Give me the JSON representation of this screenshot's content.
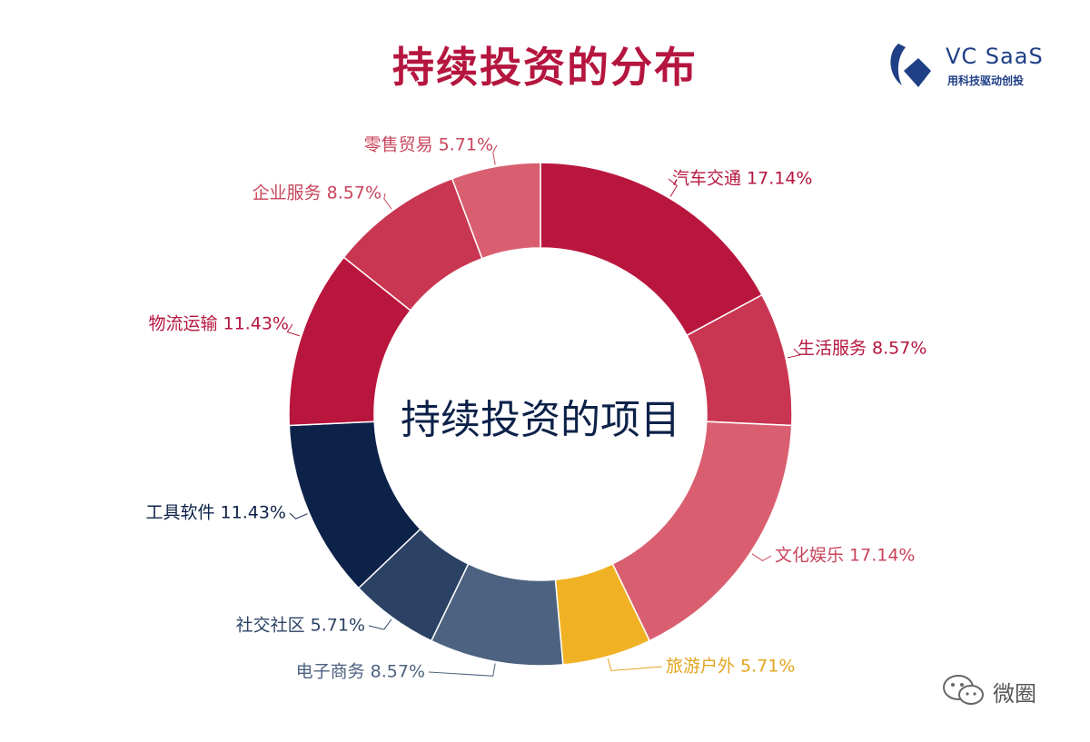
{
  "header": {
    "title": "持续投资的分布"
  },
  "logo": {
    "brand": "VC SaaS",
    "slogan": "用科技驱动创投",
    "icon": "vc-saas-logo-icon",
    "color": "#1f3f86"
  },
  "watermark": {
    "text": "微圈",
    "icon": "wechat-icon"
  },
  "chart_data": {
    "type": "pie",
    "donut": true,
    "center_label": "持续投资的项目",
    "slices": [
      {
        "label": "汽车交通",
        "value": 17.14,
        "display": "汽车交通 17.14%",
        "color": "#b9163e",
        "label_color": "#b5163f"
      },
      {
        "label": "生活服务",
        "value": 8.57,
        "display": "生活服务 8.57%",
        "color": "#c93651",
        "label_color": "#b5163f"
      },
      {
        "label": "文化娱乐",
        "value": 17.14,
        "display": "文化娱乐 17.14%",
        "color": "#d95f70",
        "label_color": "#c9455c"
      },
      {
        "label": "旅游户外",
        "value": 5.71,
        "display": "旅游户外 5.71%",
        "color": "#f0b224",
        "label_color": "#e3a51d"
      },
      {
        "label": "电子商务",
        "value": 8.57,
        "display": "电子商务 8.57%",
        "color": "#4d6280",
        "label_color": "#4d6280"
      },
      {
        "label": "社交社区",
        "value": 5.71,
        "display": "社交社区 5.71%",
        "color": "#2b4264",
        "label_color": "#2b4264"
      },
      {
        "label": "工具软件",
        "value": 11.43,
        "display": "工具软件 11.43%",
        "color": "#0d2249",
        "label_color": "#0d2249"
      },
      {
        "label": "物流运输",
        "value": 11.43,
        "display": "物流运输 11.43%",
        "color": "#b9163e",
        "label_color": "#b5163f"
      },
      {
        "label": "企业服务",
        "value": 8.57,
        "display": "企业服务 8.57%",
        "color": "#c93651",
        "label_color": "#c9455c"
      },
      {
        "label": "零售贸易",
        "value": 5.71,
        "display": "零售贸易 5.71%",
        "color": "#d95f70",
        "label_color": "#c9455c"
      }
    ]
  }
}
